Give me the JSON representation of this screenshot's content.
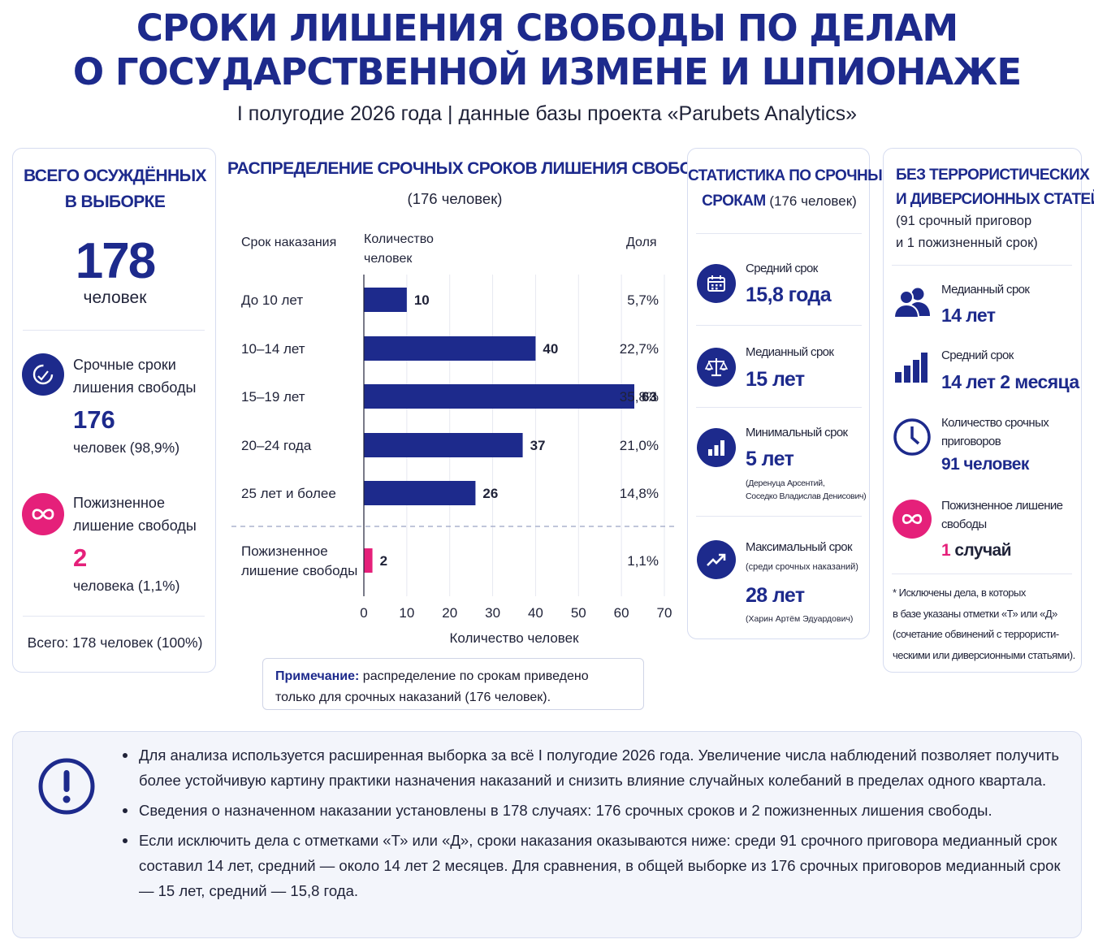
{
  "title": {
    "line1": "СРОКИ ЛИШЕНИЯ СВОБОДЫ ПО ДЕЛАМ",
    "line2": "О ГОСУДАРСТВЕННОЙ ИЗМЕНЕ И ШПИОНАЖЕ"
  },
  "subtitle": "I полугодие 2026 года | данные базы проекта «Parubets Analytics»",
  "left_card": {
    "heading1": "ВСЕГО ОСУЖДЁННЫХ",
    "heading2": "В ВЫБОРКЕ",
    "total": "178",
    "total_unit": "человек",
    "term": {
      "label1": "Срочные сроки",
      "label2": "лишения свободы",
      "value": "176",
      "detail": "человек (98,9%)"
    },
    "life": {
      "label1": "Пожизненное",
      "label2": "лишение свободы",
      "value": "2",
      "detail": "человека (1,1%)"
    },
    "footer": "Всего: 178 человек (100%)",
    "colors": {
      "navy": "#1d2a8c",
      "pink": "#e5207a"
    }
  },
  "chart_header": {
    "title": "РАСПРЕДЕЛЕНИЕ СРОЧНЫХ СРОКОВ ЛИШЕНИЯ СВОБОДЫ",
    "subtitle": "(176 человек)",
    "col_term": "Срок наказания",
    "col_count1": "Количество",
    "col_count2": "человек",
    "col_share": "Доля"
  },
  "chart_data": {
    "type": "bar",
    "orientation": "horizontal",
    "categories": [
      "До 10 лет",
      "10–14 лет",
      "15–19 лет",
      "20–24 года",
      "25 лет и более",
      "Пожизненное лишение свободы"
    ],
    "category_lines": [
      [
        "До 10 лет"
      ],
      [
        "10–14 лет"
      ],
      [
        "15–19 лет"
      ],
      [
        "20–24 года"
      ],
      [
        "25 лет и более"
      ],
      [
        "Пожизненное",
        "лишение свободы"
      ]
    ],
    "values": [
      10,
      40,
      63,
      37,
      26,
      2
    ],
    "value_labels": [
      "10",
      "40",
      "63",
      "37",
      "26",
      "2"
    ],
    "shares": [
      "5,7%",
      "22,7%",
      "35,8%",
      "21,0%",
      "14,8%",
      "1,1%"
    ],
    "bar_colors": [
      "#1d2a8c",
      "#1d2a8c",
      "#1d2a8c",
      "#1d2a8c",
      "#1d2a8c",
      "#e5207a"
    ],
    "xlim": [
      0,
      70
    ],
    "xticks": [
      "0",
      "10",
      "20",
      "30",
      "40",
      "50",
      "60",
      "70"
    ],
    "xlabel": "Количество человек",
    "grid": true
  },
  "note": {
    "label": "Примечание:",
    "text1": " распределение по срокам приведено",
    "text2": "только для срочных наказаний (176 человек)."
  },
  "stats_card": {
    "heading1": "СТАТИСТИКА ПО СРОЧНЫМ",
    "heading2_bold": "СРОКАМ",
    "heading2_rest": " (176 человек)",
    "items": [
      {
        "icon": "calendar-icon",
        "label": "Средний срок",
        "value": "15,8 года",
        "note1": "",
        "note2": ""
      },
      {
        "icon": "scales-icon",
        "label": "Медианный срок",
        "value": "15 лет",
        "note1": "",
        "note2": ""
      },
      {
        "icon": "bar-chart-icon",
        "label": "Минимальный срок",
        "value": "5 лет",
        "note1": "(Деренуца Арсентий,",
        "note2": "Соседко Владислав Денисович)"
      },
      {
        "icon": "trend-up-icon",
        "label": "Максимальный срок",
        "sublabel": "(среди срочных наказаний)",
        "value": "28 лет",
        "note1": "(Харин Артём Эдуардович)",
        "note2": ""
      }
    ]
  },
  "noterr_card": {
    "heading1": "БЕЗ ТЕРРОРИСТИЧЕСКИХ",
    "heading2": "И ДИВЕРСИОННЫХ СТАТЕЙ*",
    "sub1": "(91 срочный приговор",
    "sub2": "и 1 пожизненный срок)",
    "items": [
      {
        "icon": "people-icon",
        "label": "Медианный срок",
        "value": "14 лет"
      },
      {
        "icon": "bars-icon",
        "label": "Средний срок",
        "value": "14 лет 2 месяца"
      },
      {
        "icon": "clock-icon",
        "label1": "Количество срочных",
        "label2": "приговоров",
        "value": "91 человек"
      },
      {
        "icon": "infinity-icon",
        "label1": "Пожизненное лишение",
        "label2": "свободы",
        "value_num": "1",
        "value_rest": " случай"
      }
    ],
    "footnote1": "* Исключены дела, в которых",
    "footnote2": "в базе указаны отметки «Т» или «Д»",
    "footnote3": "(сочетание обвинений с террористи-",
    "footnote4": "ческими или диверсионными статьями)."
  },
  "bottom_notes": [
    "Для анализа используется расширенная выборка за всё I полугодие 2026 года. Увеличение числа наблюдений позволяет получить более устойчивую картину практики назначения наказаний и снизить влияние случайных колебаний в пределах одного квартала.",
    "Сведения о назначенном наказании установлены в 178 случаях: 176 срочных сроков и 2 пожизненных лишения свободы.",
    "Если исключить дела с отметками «Т» или «Д», сроки наказания оказываются ниже: среди 91 срочного приговора медианный срок составил 14 лет, средний — около 14 лет 2 месяцев. Для сравнения, в общей выборке из 176 срочных приговоров медианный срок — 15 лет, средний — 15,8 года."
  ]
}
